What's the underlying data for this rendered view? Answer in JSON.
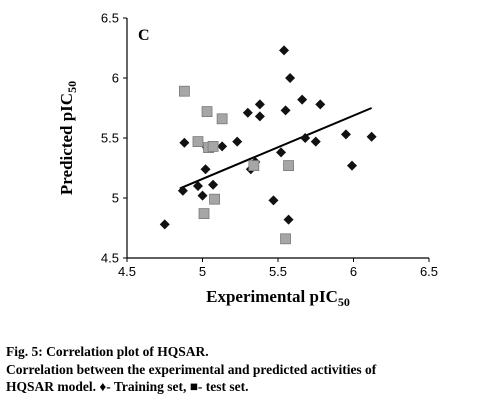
{
  "chart_data": {
    "type": "scatter",
    "panel_label": "C",
    "xlabel": "Experimental pIC",
    "xlabel_sub": "50",
    "ylabel": "Predicted pIC",
    "ylabel_sub": "50",
    "xlim": [
      4.5,
      6.5
    ],
    "ylim": [
      4.5,
      6.5
    ],
    "xticks": [
      "4.5",
      "5",
      "5.5",
      "6",
      "6.5"
    ],
    "yticks": [
      "4.5",
      "5",
      "5.5",
      "6",
      "6.5"
    ],
    "grid": false,
    "series": [
      {
        "name": "Training set",
        "marker": "diamond",
        "color": "#111111",
        "points": [
          [
            4.75,
            4.78
          ],
          [
            4.87,
            5.06
          ],
          [
            4.88,
            5.46
          ],
          [
            4.97,
            5.1
          ],
          [
            5.0,
            5.02
          ],
          [
            5.02,
            5.24
          ],
          [
            5.03,
            5.42
          ],
          [
            5.07,
            5.11
          ],
          [
            5.13,
            5.43
          ],
          [
            5.23,
            5.47
          ],
          [
            5.3,
            5.71
          ],
          [
            5.32,
            5.24
          ],
          [
            5.35,
            5.3
          ],
          [
            5.38,
            5.78
          ],
          [
            5.38,
            5.68
          ],
          [
            5.47,
            4.98
          ],
          [
            5.52,
            5.38
          ],
          [
            5.54,
            6.23
          ],
          [
            5.55,
            5.73
          ],
          [
            5.57,
            4.82
          ],
          [
            5.58,
            6.0
          ],
          [
            5.66,
            5.82
          ],
          [
            5.68,
            5.5
          ],
          [
            5.75,
            5.47
          ],
          [
            5.78,
            5.78
          ],
          [
            5.95,
            5.53
          ],
          [
            5.99,
            5.27
          ],
          [
            6.12,
            5.51
          ]
        ]
      },
      {
        "name": "Test set",
        "marker": "square",
        "color": "#a6a6a6",
        "points": [
          [
            4.88,
            5.89
          ],
          [
            4.97,
            5.47
          ],
          [
            5.01,
            4.87
          ],
          [
            5.03,
            5.72
          ],
          [
            5.04,
            5.42
          ],
          [
            5.07,
            5.43
          ],
          [
            5.08,
            4.99
          ],
          [
            5.13,
            5.66
          ],
          [
            5.34,
            5.27
          ],
          [
            5.55,
            4.66
          ],
          [
            5.57,
            5.27
          ]
        ]
      }
    ],
    "trendline": {
      "x": [
        4.85,
        6.12
      ],
      "y": [
        5.08,
        5.75
      ]
    }
  },
  "caption": {
    "title": "Fig. 5: Correlation plot of HQSAR.",
    "line1": "Correlation between the experimental and predicted activities of",
    "line2": "HQSAR model. ♦- Training set, ■- test set."
  }
}
